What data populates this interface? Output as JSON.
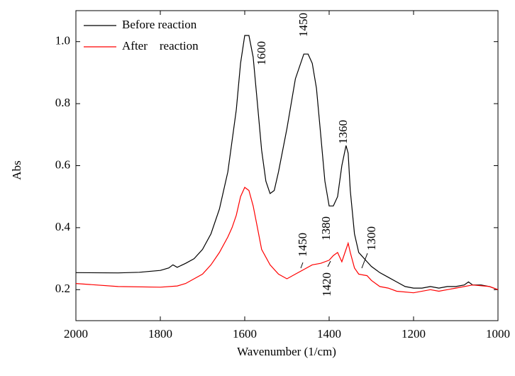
{
  "chart_data": {
    "type": "line",
    "xlabel": "Wavenumber (1/cm)",
    "ylabel": "Abs",
    "xlim": [
      2000,
      1000
    ],
    "xticks": [
      2000,
      1800,
      1600,
      1400,
      1200,
      1000
    ],
    "ylim": [
      0.1,
      1.1
    ],
    "yticks": [
      0.2,
      0.4,
      0.6,
      0.8,
      {
        "value": 1,
        "label": "1.0"
      }
    ],
    "legend": "upper left",
    "series": [
      {
        "name": "Before reaction",
        "color": "#000000",
        "x": [
          2000,
          1900,
          1850,
          1800,
          1780,
          1770,
          1760,
          1740,
          1720,
          1700,
          1680,
          1660,
          1640,
          1620,
          1610,
          1600,
          1590,
          1580,
          1570,
          1560,
          1550,
          1540,
          1530,
          1520,
          1500,
          1480,
          1460,
          1450,
          1440,
          1430,
          1420,
          1410,
          1400,
          1390,
          1380,
          1370,
          1360,
          1355,
          1350,
          1340,
          1330,
          1310,
          1300,
          1280,
          1260,
          1240,
          1220,
          1200,
          1180,
          1160,
          1140,
          1120,
          1100,
          1080,
          1070,
          1060,
          1040,
          1020,
          1000
        ],
        "values": [
          0.255,
          0.254,
          0.256,
          0.262,
          0.27,
          0.28,
          0.272,
          0.285,
          0.3,
          0.33,
          0.38,
          0.46,
          0.58,
          0.78,
          0.93,
          1.02,
          1.02,
          0.95,
          0.8,
          0.65,
          0.55,
          0.51,
          0.52,
          0.58,
          0.72,
          0.88,
          0.96,
          0.96,
          0.93,
          0.85,
          0.7,
          0.55,
          0.47,
          0.47,
          0.5,
          0.6,
          0.665,
          0.64,
          0.52,
          0.38,
          0.32,
          0.29,
          0.275,
          0.255,
          0.24,
          0.225,
          0.21,
          0.205,
          0.205,
          0.21,
          0.205,
          0.21,
          0.21,
          0.215,
          0.225,
          0.215,
          0.215,
          0.21,
          0.2
        ]
      },
      {
        "name": "After    reaction",
        "color": "#ff0000",
        "x": [
          2000,
          1900,
          1800,
          1760,
          1740,
          1720,
          1700,
          1680,
          1660,
          1640,
          1630,
          1620,
          1610,
          1600,
          1590,
          1580,
          1570,
          1560,
          1540,
          1520,
          1500,
          1480,
          1460,
          1440,
          1420,
          1400,
          1390,
          1380,
          1370,
          1360,
          1355,
          1350,
          1340,
          1330,
          1310,
          1300,
          1280,
          1260,
          1240,
          1200,
          1160,
          1140,
          1100,
          1060,
          1020,
          1000
        ],
        "values": [
          0.22,
          0.21,
          0.208,
          0.212,
          0.22,
          0.235,
          0.25,
          0.28,
          0.32,
          0.37,
          0.4,
          0.44,
          0.5,
          0.53,
          0.52,
          0.47,
          0.4,
          0.33,
          0.28,
          0.25,
          0.235,
          0.25,
          0.265,
          0.28,
          0.285,
          0.295,
          0.31,
          0.32,
          0.29,
          0.33,
          0.35,
          0.32,
          0.27,
          0.25,
          0.245,
          0.23,
          0.21,
          0.205,
          0.195,
          0.19,
          0.2,
          0.195,
          0.205,
          0.215,
          0.21,
          0.2
        ]
      }
    ],
    "annotations": [
      "1600",
      "1450",
      "1360",
      "1380",
      "1450",
      "1420",
      "1300"
    ]
  }
}
